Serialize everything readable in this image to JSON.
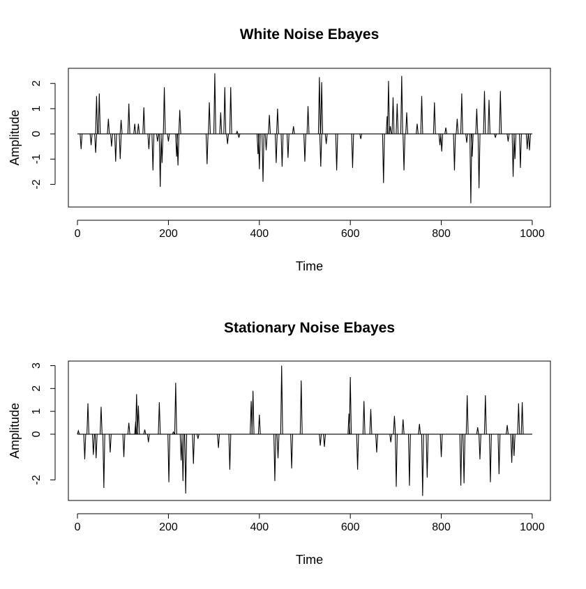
{
  "chart_data": [
    {
      "type": "line",
      "title": "White Noise Ebayes",
      "xlabel": "Time",
      "ylabel": "Amplitude",
      "xlim": [
        -20,
        1040
      ],
      "ylim": [
        -2.9,
        2.6
      ],
      "xticks": [
        0,
        200,
        400,
        600,
        800,
        1000
      ],
      "xtick_labels": [
        "0",
        "200",
        "400",
        "600",
        "800",
        "1000"
      ],
      "yticks": [
        -2,
        -1,
        0,
        1,
        2
      ],
      "ytick_labels": [
        "-2",
        "-1",
        "0",
        "1",
        "2"
      ],
      "grid": false,
      "line_color": "#000000",
      "spikes": [
        [
          8,
          -0.6
        ],
        [
          30,
          -0.45
        ],
        [
          40,
          -0.75
        ],
        [
          42,
          1.5
        ],
        [
          48,
          1.6
        ],
        [
          68,
          0.6
        ],
        [
          75,
          -0.5
        ],
        [
          84,
          -1.1
        ],
        [
          94,
          -1.0
        ],
        [
          96,
          0.55
        ],
        [
          113,
          1.2
        ],
        [
          126,
          0.4
        ],
        [
          134,
          0.4
        ],
        [
          146,
          1.05
        ],
        [
          157,
          -0.6
        ],
        [
          166,
          -1.45
        ],
        [
          176,
          -0.3
        ],
        [
          182,
          -2.1
        ],
        [
          186,
          -1.15
        ],
        [
          191,
          1.85
        ],
        [
          200,
          -0.3
        ],
        [
          218,
          -0.9
        ],
        [
          221,
          -1.25
        ],
        [
          225,
          0.95
        ],
        [
          285,
          -1.2
        ],
        [
          290,
          1.25
        ],
        [
          302,
          2.4
        ],
        [
          315,
          0.85
        ],
        [
          324,
          1.85
        ],
        [
          330,
          -0.4
        ],
        [
          337,
          1.85
        ],
        [
          351,
          0.1
        ],
        [
          355,
          -0.15
        ],
        [
          397,
          -0.8
        ],
        [
          400,
          -1.4
        ],
        [
          408,
          -1.9
        ],
        [
          415,
          -0.65
        ],
        [
          422,
          0.75
        ],
        [
          437,
          -1.15
        ],
        [
          440,
          1.0
        ],
        [
          450,
          -1.3
        ],
        [
          463,
          -0.95
        ],
        [
          475,
          0.3
        ],
        [
          500,
          -1.1
        ],
        [
          507,
          1.1
        ],
        [
          532,
          2.25
        ],
        [
          535,
          -1.3
        ],
        [
          537,
          2.05
        ],
        [
          547,
          -0.4
        ],
        [
          570,
          -1.45
        ],
        [
          605,
          -1.35
        ],
        [
          623,
          -0.2
        ],
        [
          673,
          -1.95
        ],
        [
          681,
          0.7
        ],
        [
          684,
          2.1
        ],
        [
          688,
          0.3
        ],
        [
          694,
          1.45
        ],
        [
          703,
          1.2
        ],
        [
          713,
          2.3
        ],
        [
          718,
          -1.45
        ],
        [
          724,
          0.85
        ],
        [
          747,
          0.4
        ],
        [
          757,
          1.5
        ],
        [
          785,
          1.25
        ],
        [
          797,
          -0.45
        ],
        [
          801,
          -0.7
        ],
        [
          810,
          0.25
        ],
        [
          829,
          -1.45
        ],
        [
          835,
          0.6
        ],
        [
          845,
          1.6
        ],
        [
          856,
          -0.35
        ],
        [
          865,
          -2.75
        ],
        [
          868,
          -0.9
        ],
        [
          878,
          1.0
        ],
        [
          883,
          -2.15
        ],
        [
          895,
          1.7
        ],
        [
          905,
          1.35
        ],
        [
          919,
          -0.15
        ],
        [
          930,
          1.7
        ],
        [
          947,
          -0.3
        ],
        [
          958,
          -1.7
        ],
        [
          962,
          -1.0
        ],
        [
          974,
          -1.35
        ],
        [
          989,
          -0.6
        ],
        [
          994,
          -0.65
        ]
      ]
    },
    {
      "type": "line",
      "title": "Stationary Noise Ebayes",
      "xlabel": "Time",
      "ylabel": "Amplitude",
      "xlim": [
        -20,
        1040
      ],
      "ylim": [
        -2.9,
        3.2
      ],
      "xticks": [
        0,
        200,
        400,
        600,
        800,
        1000
      ],
      "xtick_labels": [
        "0",
        "200",
        "400",
        "600",
        "800",
        "1000"
      ],
      "yticks": [
        -2,
        0,
        1,
        2,
        3
      ],
      "ytick_labels": [
        "-2",
        "0",
        "1",
        "2",
        "3"
      ],
      "grid": false,
      "line_color": "#000000",
      "spikes": [
        [
          2,
          0.15
        ],
        [
          16,
          -1.1
        ],
        [
          23,
          1.35
        ],
        [
          35,
          -0.9
        ],
        [
          41,
          -1.05
        ],
        [
          52,
          1.2
        ],
        [
          58,
          -2.35
        ],
        [
          72,
          -0.8
        ],
        [
          102,
          -1.0
        ],
        [
          113,
          0.5
        ],
        [
          128,
          0.55
        ],
        [
          130,
          1.75
        ],
        [
          134,
          1.25
        ],
        [
          148,
          0.2
        ],
        [
          156,
          -0.35
        ],
        [
          180,
          1.4
        ],
        [
          201,
          -2.1
        ],
        [
          211,
          0.1
        ],
        [
          216,
          2.25
        ],
        [
          228,
          -1.15
        ],
        [
          232,
          -2.05
        ],
        [
          238,
          -2.6
        ],
        [
          255,
          -1.3
        ],
        [
          265,
          -0.2
        ],
        [
          310,
          -0.6
        ],
        [
          335,
          -1.55
        ],
        [
          382,
          1.45
        ],
        [
          386,
          1.9
        ],
        [
          400,
          0.85
        ],
        [
          434,
          -2.05
        ],
        [
          441,
          -1.05
        ],
        [
          449,
          3.0
        ],
        [
          471,
          -1.5
        ],
        [
          492,
          2.35
        ],
        [
          534,
          -0.5
        ],
        [
          543,
          -0.55
        ],
        [
          597,
          0.9
        ],
        [
          600,
          2.5
        ],
        [
          616,
          -1.55
        ],
        [
          630,
          1.45
        ],
        [
          645,
          1.1
        ],
        [
          658,
          -0.8
        ],
        [
          689,
          -0.35
        ],
        [
          697,
          0.8
        ],
        [
          701,
          -2.3
        ],
        [
          716,
          0.65
        ],
        [
          730,
          -2.25
        ],
        [
          752,
          0.45
        ],
        [
          759,
          -2.7
        ],
        [
          769,
          -1.9
        ],
        [
          800,
          -1.0
        ],
        [
          843,
          -2.25
        ],
        [
          850,
          -2.15
        ],
        [
          857,
          1.7
        ],
        [
          880,
          0.3
        ],
        [
          885,
          -1.1
        ],
        [
          897,
          1.7
        ],
        [
          908,
          -2.1
        ],
        [
          927,
          -1.75
        ],
        [
          945,
          0.4
        ],
        [
          955,
          -1.25
        ],
        [
          960,
          -0.95
        ],
        [
          970,
          1.35
        ],
        [
          978,
          1.4
        ]
      ]
    }
  ]
}
